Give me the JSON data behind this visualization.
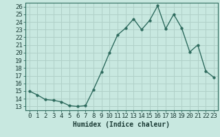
{
  "title": "",
  "xlabel": "Humidex (Indice chaleur)",
  "x": [
    0,
    1,
    2,
    3,
    4,
    5,
    6,
    7,
    8,
    9,
    10,
    11,
    12,
    13,
    14,
    15,
    16,
    17,
    18,
    19,
    20,
    21,
    22,
    23
  ],
  "y": [
    15.0,
    14.5,
    13.9,
    13.8,
    13.6,
    13.1,
    13.0,
    13.1,
    15.2,
    17.5,
    20.0,
    22.3,
    23.2,
    24.4,
    23.0,
    24.2,
    26.1,
    23.1,
    25.0,
    23.2,
    20.1,
    21.0,
    17.6,
    16.8
  ],
  "line_color": "#2e6b5e",
  "marker": "o",
  "marker_size": 2.5,
  "bg_color": "#c8e8e0",
  "grid_color": "#b0d0c8",
  "ylim": [
    12.5,
    26.5
  ],
  "xlim": [
    -0.5,
    23.5
  ],
  "yticks": [
    13,
    14,
    15,
    16,
    17,
    18,
    19,
    20,
    21,
    22,
    23,
    24,
    25,
    26
  ],
  "xticks": [
    0,
    1,
    2,
    3,
    4,
    5,
    6,
    7,
    8,
    9,
    10,
    11,
    12,
    13,
    14,
    15,
    16,
    17,
    18,
    19,
    20,
    21,
    22,
    23
  ],
  "xlabel_fontsize": 7,
  "tick_fontsize": 6.5
}
